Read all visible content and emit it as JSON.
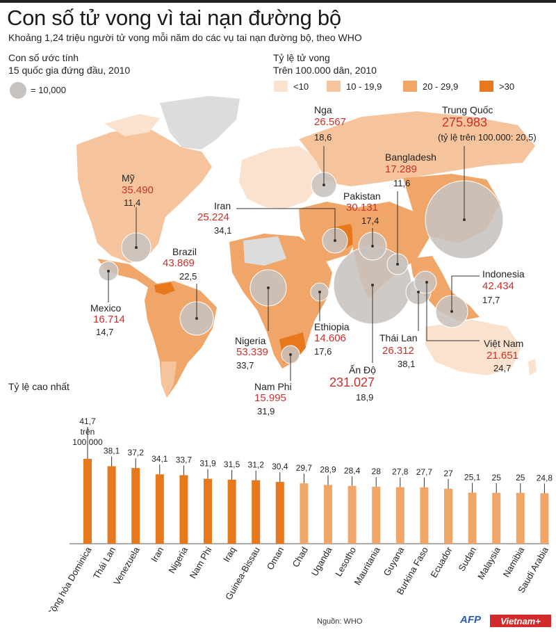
{
  "title": "Con số tử vong vì tai nạn đường bộ",
  "subtitle": "Khoảng 1,24 triệu người tử vong mỗi năm do các vụ tai nạn đường bộ, theo WHO",
  "legend_size": {
    "heading_1": "Con số ước tính",
    "heading_2": "15 quốc gia đứng đầu, 2010",
    "circle_label": "= 10,000"
  },
  "legend_rate": {
    "heading_1": "Tỷ lệ tử vong",
    "heading_2": "Trên 100.000 dân, 2010",
    "items": [
      {
        "label": "<10",
        "color": "#fbe2ce"
      },
      {
        "label": "10 - 19,9",
        "color": "#f6c49c"
      },
      {
        "label": "20 - 29,9",
        "color": "#f0a668"
      },
      {
        "label": ">30",
        "color": "#e8781c"
      }
    ]
  },
  "map_countries": {
    "nga": {
      "name": "Nga",
      "deaths": "26.567",
      "rate": "18,6"
    },
    "trungquoc": {
      "name": "Trung Quốc",
      "deaths": "275.983",
      "rate": "(tỷ lệ trên 100.000: 20,5)"
    },
    "bangladesh": {
      "name": "Bangladesh",
      "deaths": "17.289",
      "rate": "11,6"
    },
    "my": {
      "name": "Mỹ",
      "deaths": "35.490",
      "rate": "11,4"
    },
    "iran": {
      "name": "Iran",
      "deaths": "25.224",
      "rate": "34,1"
    },
    "pakistan": {
      "name": "Pakistan",
      "deaths": "30.131",
      "rate": "17,4"
    },
    "brazil": {
      "name": "Brazil",
      "deaths": "43.869",
      "rate": "22,5"
    },
    "indonesia": {
      "name": "Indonesia",
      "deaths": "42.434",
      "rate": "17,7"
    },
    "mexico": {
      "name": "Mexico",
      "deaths": "16.714",
      "rate": "14,7"
    },
    "ethiopia": {
      "name": "Ethiopia",
      "deaths": "14.606",
      "rate": "17,6"
    },
    "nigeria": {
      "name": "Nigeria",
      "deaths": "53.339",
      "rate": "33,7"
    },
    "thailan": {
      "name": "Thái Lan",
      "deaths": "26.312",
      "rate": "38,1"
    },
    "vietnam": {
      "name": "Việt Nam",
      "deaths": "21.651",
      "rate": "24,7"
    },
    "namphi": {
      "name": "Nam Phi",
      "deaths": "15.995",
      "rate": "31,9"
    },
    "ando": {
      "name": "Ấn Độ",
      "deaths": "231.027",
      "rate": "18,9"
    }
  },
  "chart_data": {
    "type": "bar",
    "title": "Tỷ lệ cao nhất",
    "first_label_extra": [
      "trên",
      "100.000"
    ],
    "categories": [
      "Cộng hòa Dominica",
      "Thái Lan",
      "Venezuela",
      "Iran",
      "Nigeria",
      "Nam Phi",
      "Iraq",
      "Guinea-Bissau",
      "Oman",
      "Chad",
      "Uganda",
      "Lesotho",
      "Mauritania",
      "Guyana",
      "Burkina Faso",
      "Ecuador",
      "Sudan",
      "Malaysia",
      "Namibia",
      "Saudi Arabia"
    ],
    "values": [
      41.7,
      38.1,
      37.2,
      34.1,
      33.7,
      31.9,
      31.5,
      31.2,
      30.4,
      29.7,
      28.9,
      28.4,
      28,
      27.8,
      27.7,
      27,
      25.1,
      25,
      25,
      24.8
    ],
    "value_labels": [
      "41,7",
      "38,1",
      "37,2",
      "34,1",
      "33,7",
      "31,9",
      "31,5",
      "31,2",
      "30,4",
      "29,7",
      "28,9",
      "28,4",
      "28",
      "27,8",
      "27,7",
      "27",
      "25,1",
      "25",
      "25",
      "24,8"
    ],
    "colors": {
      ">30": "#e8781c",
      "20-29,9": "#f0a668"
    },
    "ylim": [
      0,
      45
    ],
    "xlabel": "",
    "ylabel": ""
  },
  "source": "Nguồn: WHO",
  "logo_afp": "AFP",
  "logo_vn": "Vietnam+",
  "palette": {
    "lightest": "#fbe2ce",
    "light": "#f6c49c",
    "mid": "#f0a668",
    "dark": "#e8781c",
    "nodata": "#dcdcdc",
    "bubble": "#c8c3be",
    "red": "#c9302c"
  }
}
